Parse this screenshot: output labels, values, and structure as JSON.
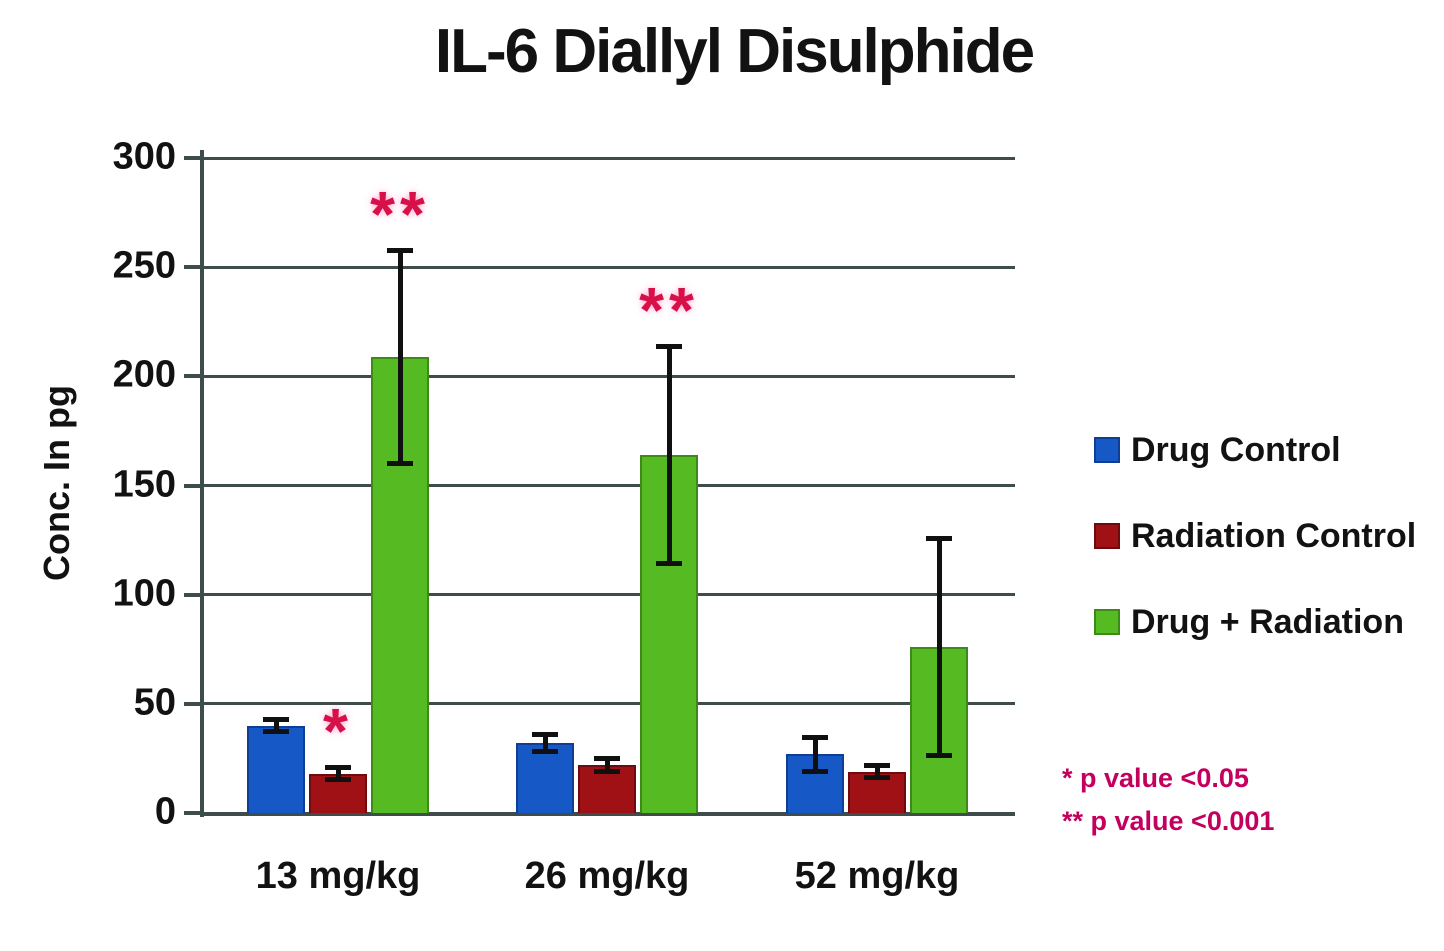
{
  "chart_data": {
    "type": "bar",
    "title": "IL-6 Diallyl Disulphide",
    "ylabel": "Conc. In pg",
    "xlabel": "",
    "categories": [
      "13 mg/kg",
      "26 mg/kg",
      "52 mg/kg"
    ],
    "series": [
      {
        "name": "Drug Control",
        "color": "#1558c6",
        "border_color": "#0e3f92",
        "values": [
          40,
          32,
          27
        ],
        "errors": [
          3,
          4,
          8
        ],
        "significance": [
          "",
          "",
          ""
        ]
      },
      {
        "name": "Radiation Control",
        "color": "#a01116",
        "border_color": "#6e0a10",
        "values": [
          18,
          22,
          19
        ],
        "errors": [
          3,
          3,
          3
        ],
        "significance": [
          "*",
          "",
          ""
        ]
      },
      {
        "name": "Drug + Radiation",
        "color": "#56ba23",
        "border_color": "#3d8a16",
        "values": [
          209,
          164,
          76
        ],
        "errors": [
          49,
          50,
          50
        ],
        "significance": [
          "**",
          "**",
          ""
        ]
      }
    ],
    "ylim": [
      0,
      300
    ],
    "yticks": [
      0,
      50,
      100,
      150,
      200,
      250,
      300
    ],
    "grid": true,
    "legend_position": "right",
    "grid_color": "#3e4c4c",
    "error_bar_color": "#101010",
    "significance_marker_color": "#d81048"
  },
  "footnotes": {
    "line1": "* p value <0.05",
    "line2": "** p value <0.001",
    "color": "#c4005e"
  }
}
